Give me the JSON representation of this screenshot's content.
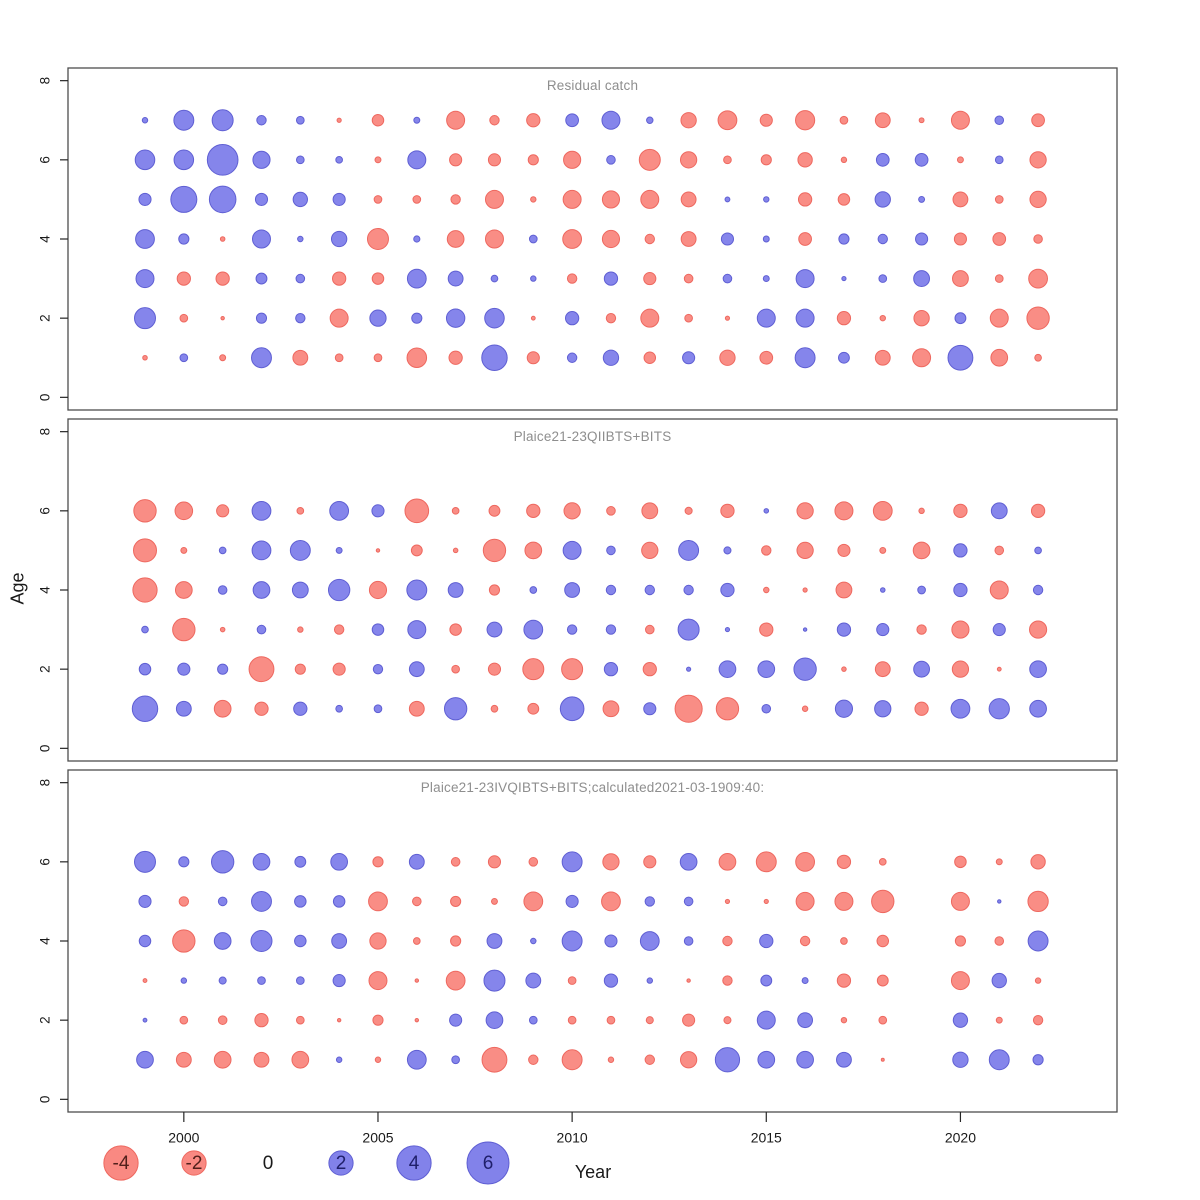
{
  "axes": {
    "xlabel": "Year",
    "ylabel": "Age",
    "x_ticks": [
      2000,
      2005,
      2010,
      2015,
      2020
    ],
    "y_ticks": [
      0,
      2,
      4,
      6,
      8
    ],
    "ylim": [
      0,
      8
    ]
  },
  "legend": {
    "values": [
      -4,
      -2,
      0,
      2,
      4,
      6
    ]
  },
  "colors": {
    "positive_fill": "#7b7be9",
    "positive_stroke": "#5f5fd3",
    "negative_fill": "#f9837b",
    "negative_stroke": "#ee685f",
    "panel_border": "#4d4d4d",
    "axis": "#262626",
    "tick_text": "#1a1a1a",
    "title_text": "#8e8e8e",
    "legend_text_negative": "#52201c",
    "legend_text_positive": "#20206b",
    "legend_text_zero": "#1a1a1a"
  },
  "chart_data": [
    {
      "type": "bubble",
      "title": "Residual catch",
      "xlabel": "Year",
      "ylabel": "Age",
      "years": [
        1999,
        2000,
        2001,
        2002,
        2003,
        2004,
        2005,
        2006,
        2007,
        2008,
        2009,
        2010,
        2011,
        2012,
        2013,
        2014,
        2015,
        2016,
        2017,
        2018,
        2019,
        2020,
        2021,
        2022
      ],
      "rows": [
        {
          "age": 1,
          "values": [
            -0.07,
            0.2,
            -0.12,
            1.35,
            -0.75,
            -0.2,
            -0.2,
            -1.3,
            -0.6,
            2.2,
            -0.5,
            0.3,
            0.8,
            -0.45,
            0.5,
            -0.8,
            -0.55,
            1.35,
            0.4,
            -0.75,
            -1.1,
            2.1,
            -0.95,
            -0.15
          ]
        },
        {
          "age": 2,
          "values": [
            1.5,
            -0.2,
            -0.04,
            0.35,
            0.3,
            -1.1,
            0.9,
            0.35,
            1.15,
            1.3,
            -0.05,
            0.6,
            -0.3,
            -1.1,
            -0.2,
            -0.06,
            1.1,
            1.1,
            -0.6,
            -0.1,
            -0.8,
            0.4,
            -1.1,
            -1.7
          ]
        },
        {
          "age": 3,
          "values": [
            1.1,
            -0.6,
            -0.6,
            0.4,
            0.25,
            -0.6,
            -0.45,
            1.2,
            0.75,
            0.15,
            0.1,
            -0.3,
            0.6,
            -0.5,
            -0.25,
            0.25,
            0.12,
            1.1,
            0.06,
            0.2,
            0.85,
            -0.85,
            -0.2,
            -1.2
          ]
        },
        {
          "age": 4,
          "values": [
            1.2,
            0.35,
            -0.07,
            1.1,
            0.1,
            0.8,
            -1.5,
            0.13,
            -0.95,
            -1.1,
            0.2,
            -1.2,
            -1.0,
            -0.3,
            -0.75,
            0.5,
            0.12,
            -0.55,
            0.35,
            0.3,
            0.5,
            -0.5,
            -0.55,
            -0.25
          ]
        },
        {
          "age": 5,
          "values": [
            0.5,
            2.3,
            2.4,
            0.5,
            0.7,
            0.5,
            -0.2,
            -0.2,
            -0.3,
            -1.1,
            -0.1,
            -1.1,
            -1.0,
            -1.1,
            -0.75,
            0.08,
            0.1,
            -0.6,
            -0.45,
            0.8,
            0.12,
            -0.75,
            -0.2,
            -0.9
          ]
        },
        {
          "age": 6,
          "values": [
            1.3,
            1.3,
            3.2,
            1.0,
            0.2,
            0.15,
            -0.12,
            1.1,
            -0.5,
            -0.5,
            -0.35,
            -1.0,
            0.25,
            -1.5,
            -0.9,
            -0.2,
            -0.35,
            -0.7,
            -0.1,
            0.55,
            0.55,
            -0.12,
            0.2,
            -0.9
          ]
        },
        {
          "age": 7,
          "values": [
            0.1,
            1.35,
            1.5,
            0.3,
            0.2,
            -0.06,
            -0.45,
            0.12,
            -1.1,
            -0.3,
            -0.6,
            0.55,
            1.1,
            0.14,
            -0.8,
            -1.2,
            -0.5,
            -1.25,
            -0.2,
            -0.75,
            -0.08,
            -1.1,
            0.25,
            -0.55
          ]
        }
      ]
    },
    {
      "type": "bubble",
      "title": "Plaice21-23QIIBTS+BITS",
      "xlabel": "Year",
      "ylabel": "Age",
      "years": [
        1999,
        2000,
        2001,
        2002,
        2003,
        2004,
        2005,
        2006,
        2007,
        2008,
        2009,
        2010,
        2011,
        2012,
        2013,
        2014,
        2015,
        2016,
        2017,
        2018,
        2019,
        2020,
        2021,
        2022
      ],
      "rows": [
        {
          "age": 1,
          "values": [
            2.2,
            0.75,
            -0.95,
            -0.6,
            0.6,
            0.15,
            0.2,
            -0.75,
            1.7,
            -0.15,
            -0.4,
            1.9,
            -0.85,
            0.5,
            -2.5,
            -1.7,
            0.25,
            -0.1,
            1.0,
            0.9,
            -0.6,
            1.2,
            1.4,
            0.95
          ]
        },
        {
          "age": 2,
          "values": [
            0.45,
            0.5,
            0.35,
            -2.1,
            -0.35,
            -0.5,
            0.3,
            0.75,
            -0.2,
            -0.5,
            -1.5,
            -1.5,
            0.6,
            -0.6,
            0.06,
            0.95,
            0.95,
            1.7,
            -0.07,
            -0.75,
            0.85,
            -0.9,
            -0.05,
            0.95
          ]
        },
        {
          "age": 3,
          "values": [
            0.15,
            -1.7,
            -0.07,
            0.25,
            -0.1,
            -0.3,
            0.45,
            1.1,
            -0.45,
            0.75,
            1.2,
            0.3,
            0.3,
            -0.25,
            1.5,
            0.06,
            -0.6,
            0.04,
            0.6,
            0.5,
            -0.3,
            -1.0,
            0.5,
            -1.0
          ]
        },
        {
          "age": 4,
          "values": [
            -2.0,
            -0.95,
            0.25,
            0.95,
            0.85,
            1.55,
            -1.0,
            1.35,
            0.75,
            -0.35,
            0.15,
            0.75,
            0.3,
            0.3,
            0.3,
            0.6,
            -0.1,
            -0.06,
            -0.85,
            0.07,
            0.2,
            0.6,
            -1.1,
            0.3
          ]
        },
        {
          "age": 5,
          "values": [
            -1.8,
            -0.12,
            0.15,
            1.2,
            1.35,
            0.12,
            -0.04,
            -0.4,
            -0.07,
            -1.7,
            -0.95,
            1.1,
            0.25,
            -0.9,
            1.35,
            0.17,
            -0.3,
            -0.9,
            -0.5,
            -0.12,
            -0.95,
            0.6,
            -0.25,
            0.15
          ]
        },
        {
          "age": 6,
          "values": [
            -1.7,
            -1.05,
            -0.5,
            1.2,
            -0.15,
            1.2,
            0.5,
            -1.9,
            -0.15,
            -0.4,
            -0.6,
            -0.9,
            -0.25,
            -0.85,
            -0.17,
            -0.6,
            0.07,
            -0.9,
            -1.1,
            -1.2,
            -0.1,
            -0.6,
            0.85,
            -0.6
          ]
        }
      ]
    },
    {
      "type": "bubble",
      "title": "Plaice21-23IVQIBTS+BITS;calculated2021-03-1909:40:",
      "xlabel": "Year",
      "ylabel": "Age",
      "years": [
        1999,
        2000,
        2001,
        2002,
        2003,
        2004,
        2005,
        2006,
        2007,
        2008,
        2009,
        2010,
        2011,
        2012,
        2013,
        2014,
        2015,
        2016,
        2017,
        2018,
        2019,
        2020,
        2021,
        2022
      ],
      "rows": [
        {
          "age": 1,
          "values": [
            0.95,
            -0.75,
            -0.95,
            -0.75,
            -0.95,
            0.1,
            -0.1,
            1.2,
            0.2,
            -2.1,
            -0.3,
            -1.35,
            -0.1,
            -0.3,
            -0.9,
            2.0,
            0.95,
            0.95,
            0.75,
            -0.03,
            null,
            0.8,
            1.35,
            0.35
          ]
        },
        {
          "age": 2,
          "values": [
            0.05,
            -0.2,
            -0.25,
            -0.6,
            -0.2,
            -0.04,
            -0.35,
            -0.04,
            0.5,
            0.95,
            0.2,
            -0.2,
            -0.2,
            -0.17,
            -0.5,
            -0.17,
            1.1,
            0.75,
            -0.1,
            -0.2,
            null,
            0.7,
            -0.12,
            -0.3
          ]
        },
        {
          "age": 3,
          "values": [
            -0.05,
            0.1,
            0.17,
            0.2,
            0.2,
            0.5,
            -1.1,
            -0.04,
            -1.2,
            1.5,
            0.75,
            -0.2,
            0.6,
            0.1,
            -0.04,
            -0.3,
            0.4,
            0.12,
            -0.6,
            -0.4,
            null,
            -1.1,
            0.7,
            -0.1
          ]
        },
        {
          "age": 4,
          "values": [
            0.45,
            -1.7,
            0.95,
            1.5,
            0.45,
            0.75,
            -0.9,
            -0.15,
            -0.35,
            0.75,
            0.1,
            1.35,
            0.5,
            1.2,
            0.25,
            -0.3,
            0.6,
            -0.3,
            -0.15,
            -0.45,
            null,
            -0.35,
            -0.25,
            1.35
          ]
        },
        {
          "age": 5,
          "values": [
            0.5,
            -0.3,
            0.25,
            1.35,
            0.45,
            0.45,
            -1.2,
            -0.25,
            -0.35,
            -0.12,
            -1.2,
            0.5,
            -1.2,
            0.3,
            0.25,
            -0.06,
            -0.06,
            -1.1,
            -1.1,
            -1.7,
            null,
            -1.1,
            0.04,
            -1.4
          ]
        },
        {
          "age": 6,
          "values": [
            1.5,
            0.35,
            1.7,
            0.95,
            0.4,
            0.95,
            -0.35,
            0.75,
            -0.25,
            -0.5,
            -0.25,
            1.35,
            -0.9,
            -0.5,
            0.95,
            -0.95,
            -1.35,
            -1.2,
            -0.6,
            -0.15,
            null,
            -0.45,
            -0.12,
            -0.7
          ]
        }
      ]
    }
  ]
}
